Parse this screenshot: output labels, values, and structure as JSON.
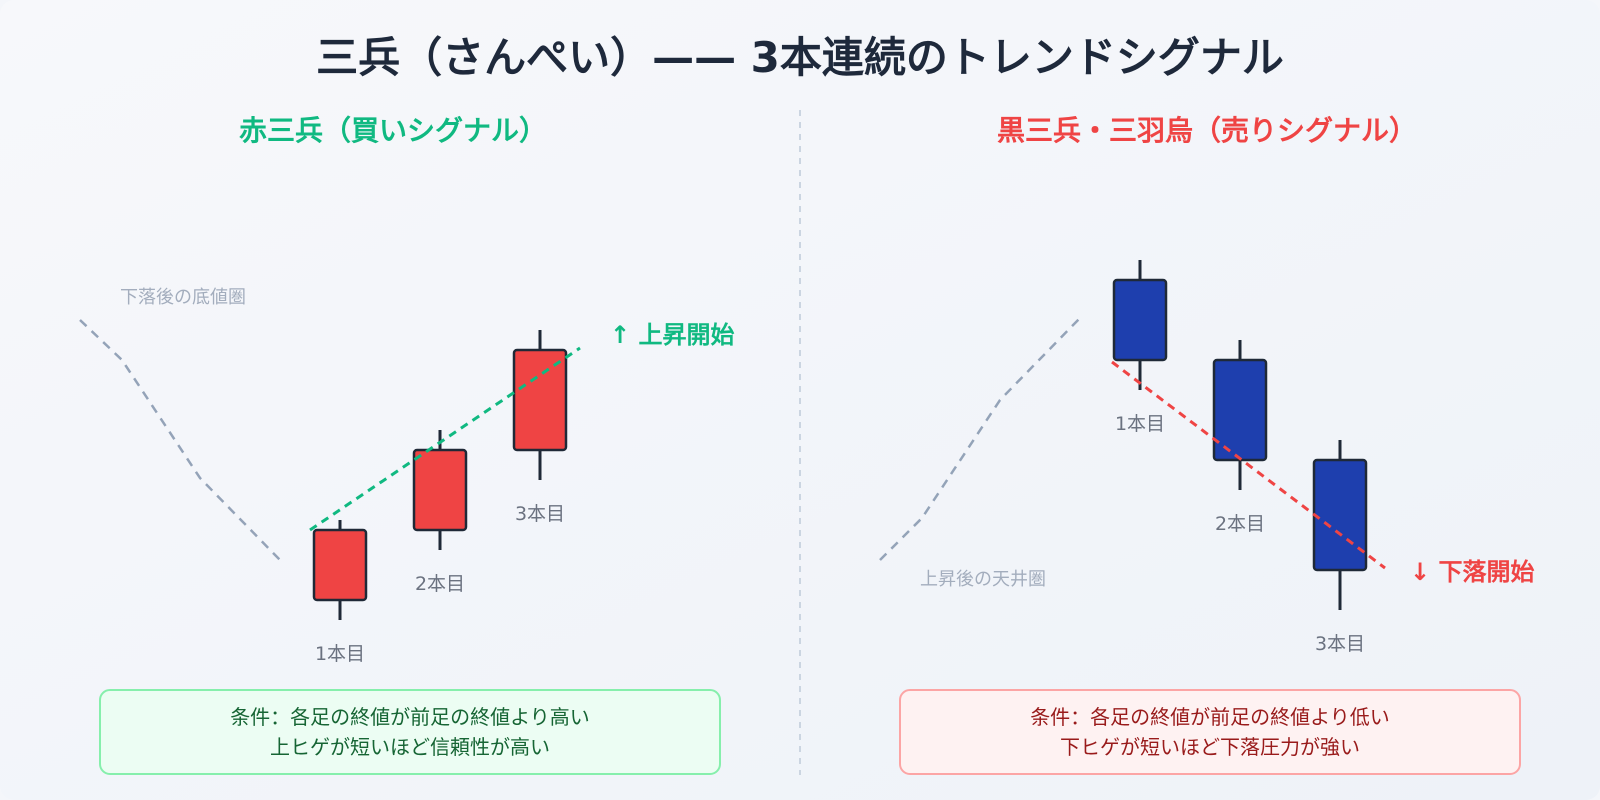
{
  "title": "三兵（さんぺい）—— 3本連続のトレンドシグナル",
  "colors": {
    "bullish_accent": "#10b981",
    "bearish_accent": "#ef4444",
    "bullish_candle": "#ef4444",
    "bearish_candle": "#1e3fae",
    "outline": "#1f2937",
    "context_line": "#94a3b8",
    "divider": "#cbd5e1",
    "bull_box_bg": "#ecfdf3",
    "bull_box_border": "#86efac",
    "bull_box_text": "#166534",
    "bear_box_bg": "#fef2f2",
    "bear_box_border": "#fca5a5",
    "bear_box_text": "#991b1b"
  },
  "panels": {
    "bullish": {
      "heading": "赤三兵（買いシグナル）",
      "context_label": "下落後の底値圏",
      "signal_label": "↑ 上昇開始",
      "candles": [
        {
          "label": "1本目",
          "open": 2,
          "close": 9,
          "high": 10,
          "low": 0
        },
        {
          "label": "2本目",
          "open": 9,
          "close": 17,
          "high": 19,
          "low": 7
        },
        {
          "label": "3本目",
          "open": 17,
          "close": 27,
          "high": 29,
          "low": 14
        }
      ],
      "condition_lines": [
        "条件：各足の終値が前足の終値より高い",
        "上ヒゲが短いほど信頼性が高い"
      ]
    },
    "bearish": {
      "heading": "黒三兵・三羽烏（売りシグナル）",
      "context_label": "上昇後の天井圏",
      "signal_label": "↓ 下落開始",
      "candles": [
        {
          "label": "1本目",
          "open": 34,
          "close": 26,
          "high": 36,
          "low": 23
        },
        {
          "label": "2本目",
          "open": 26,
          "close": 16,
          "high": 28,
          "low": 13
        },
        {
          "label": "3本目",
          "open": 16,
          "close": 5,
          "high": 18,
          "low": 1
        }
      ],
      "condition_lines": [
        "条件：各足の終値が前足の終値より低い",
        "下ヒゲが短いほど下落圧力が強い"
      ]
    }
  }
}
